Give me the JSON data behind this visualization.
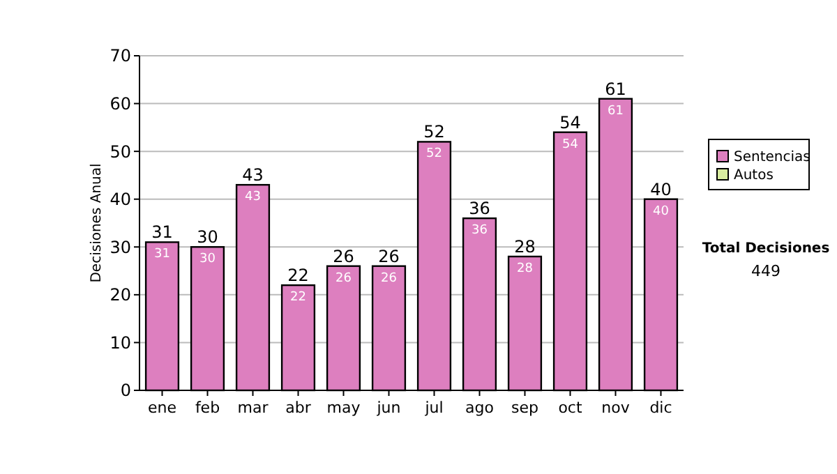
{
  "chart_data": {
    "type": "bar",
    "ylabel": "Decisiones Anual",
    "categories": [
      "ene",
      "feb",
      "mar",
      "abr",
      "may",
      "jun",
      "jul",
      "ago",
      "sep",
      "oct",
      "nov",
      "dic"
    ],
    "series": [
      {
        "name": "Sentencias",
        "color": "#dd7fbf",
        "values": [
          31,
          30,
          43,
          22,
          26,
          26,
          52,
          36,
          28,
          54,
          61,
          40
        ],
        "value_labels": [
          "31",
          "30",
          "43",
          "22",
          "26",
          "26",
          "52",
          "36",
          "28",
          "54",
          "61",
          "40"
        ]
      },
      {
        "name": "Autos",
        "color": "#d9eda0",
        "values": [
          0,
          0,
          0,
          0,
          0,
          0,
          0,
          0,
          0,
          0,
          0,
          0
        ]
      }
    ],
    "stacked": true,
    "totals": [
      "31",
      "30",
      "43",
      "22",
      "26",
      "26",
      "52",
      "36",
      "28",
      "54",
      "61",
      "40"
    ],
    "ylim": [
      0,
      70
    ],
    "yticks": [
      0,
      10,
      20,
      30,
      40,
      50,
      60,
      70
    ],
    "grid": "y",
    "legend": "right",
    "annotations": [
      "Total Decisiones",
      "449"
    ]
  }
}
